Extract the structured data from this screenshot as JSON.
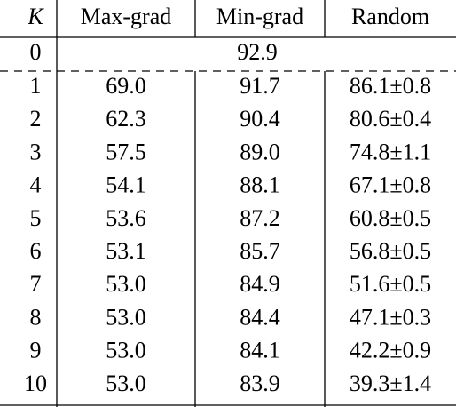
{
  "table": {
    "header": [
      "K",
      "Max-grad",
      "Min-grad",
      "Random"
    ],
    "first_row": {
      "k": "0",
      "value": "92.9"
    },
    "rows": [
      [
        "1",
        "69.0",
        "91.7",
        "86.1±0.8"
      ],
      [
        "2",
        "62.3",
        "90.4",
        "80.6±0.4"
      ],
      [
        "3",
        "57.5",
        "89.0",
        "74.8±1.1"
      ],
      [
        "4",
        "54.1",
        "88.1",
        "67.1±0.8"
      ],
      [
        "5",
        "53.6",
        "87.2",
        "60.8±0.5"
      ],
      [
        "6",
        "53.1",
        "85.7",
        "56.8±0.5"
      ],
      [
        "7",
        "53.0",
        "84.9",
        "51.6±0.5"
      ],
      [
        "8",
        "53.0",
        "84.4",
        "47.1±0.3"
      ],
      [
        "9",
        "53.0",
        "84.1",
        "42.2±0.9"
      ],
      [
        "10",
        "53.0",
        "83.9",
        "39.3±1.4"
      ]
    ]
  }
}
